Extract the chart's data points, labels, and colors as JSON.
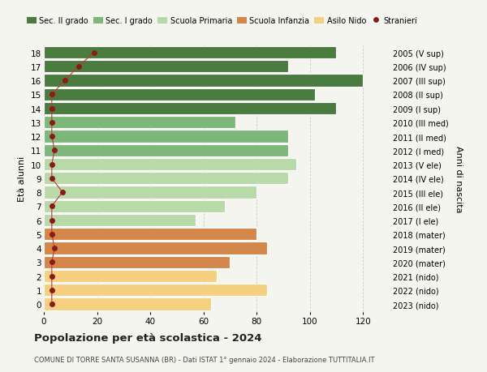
{
  "ages": [
    18,
    17,
    16,
    15,
    14,
    13,
    12,
    11,
    10,
    9,
    8,
    7,
    6,
    5,
    4,
    3,
    2,
    1,
    0
  ],
  "values": [
    110,
    92,
    120,
    102,
    110,
    72,
    92,
    92,
    95,
    92,
    80,
    68,
    57,
    80,
    84,
    70,
    65,
    84,
    63
  ],
  "foreigners": [
    19,
    13,
    8,
    3,
    3,
    3,
    3,
    4,
    3,
    3,
    7,
    3,
    3,
    3,
    4,
    3,
    3,
    3,
    3
  ],
  "right_labels": [
    "2005 (V sup)",
    "2006 (IV sup)",
    "2007 (III sup)",
    "2008 (II sup)",
    "2009 (I sup)",
    "2010 (III med)",
    "2011 (II med)",
    "2012 (I med)",
    "2013 (V ele)",
    "2014 (IV ele)",
    "2015 (III ele)",
    "2016 (II ele)",
    "2017 (I ele)",
    "2018 (mater)",
    "2019 (mater)",
    "2020 (mater)",
    "2021 (nido)",
    "2022 (nido)",
    "2023 (nido)"
  ],
  "bar_colors": {
    "sec2": "#4a7c3f",
    "sec1": "#7db87a",
    "primaria": "#b8d9a8",
    "infanzia": "#d4874a",
    "nido": "#f5d080"
  },
  "foreigners_color": "#8b1a1a",
  "foreigners_line_color": "#c0392b",
  "background_color": "#f5f5f0",
  "grid_color": "#cccccc",
  "title_bold": "Popolazione per età scolastica - 2024",
  "subtitle": "COMUNE DI TORRE SANTA SUSANNA (BR) - Dati ISTAT 1° gennaio 2024 - Elaborazione TUTTITALIA.IT",
  "ylabel_left": "Età alunni",
  "ylabel_right": "Anni di nascita",
  "xlim": [
    0,
    130
  ],
  "xticks": [
    0,
    20,
    40,
    60,
    80,
    100,
    120
  ],
  "legend_labels": [
    "Sec. II grado",
    "Sec. I grado",
    "Scuola Primaria",
    "Scuola Infanzia",
    "Asilo Nido",
    "Stranieri"
  ],
  "legend_colors": [
    "#4a7c3f",
    "#7db87a",
    "#b8d9a8",
    "#d4874a",
    "#f5d080",
    "#8b1a1a"
  ]
}
